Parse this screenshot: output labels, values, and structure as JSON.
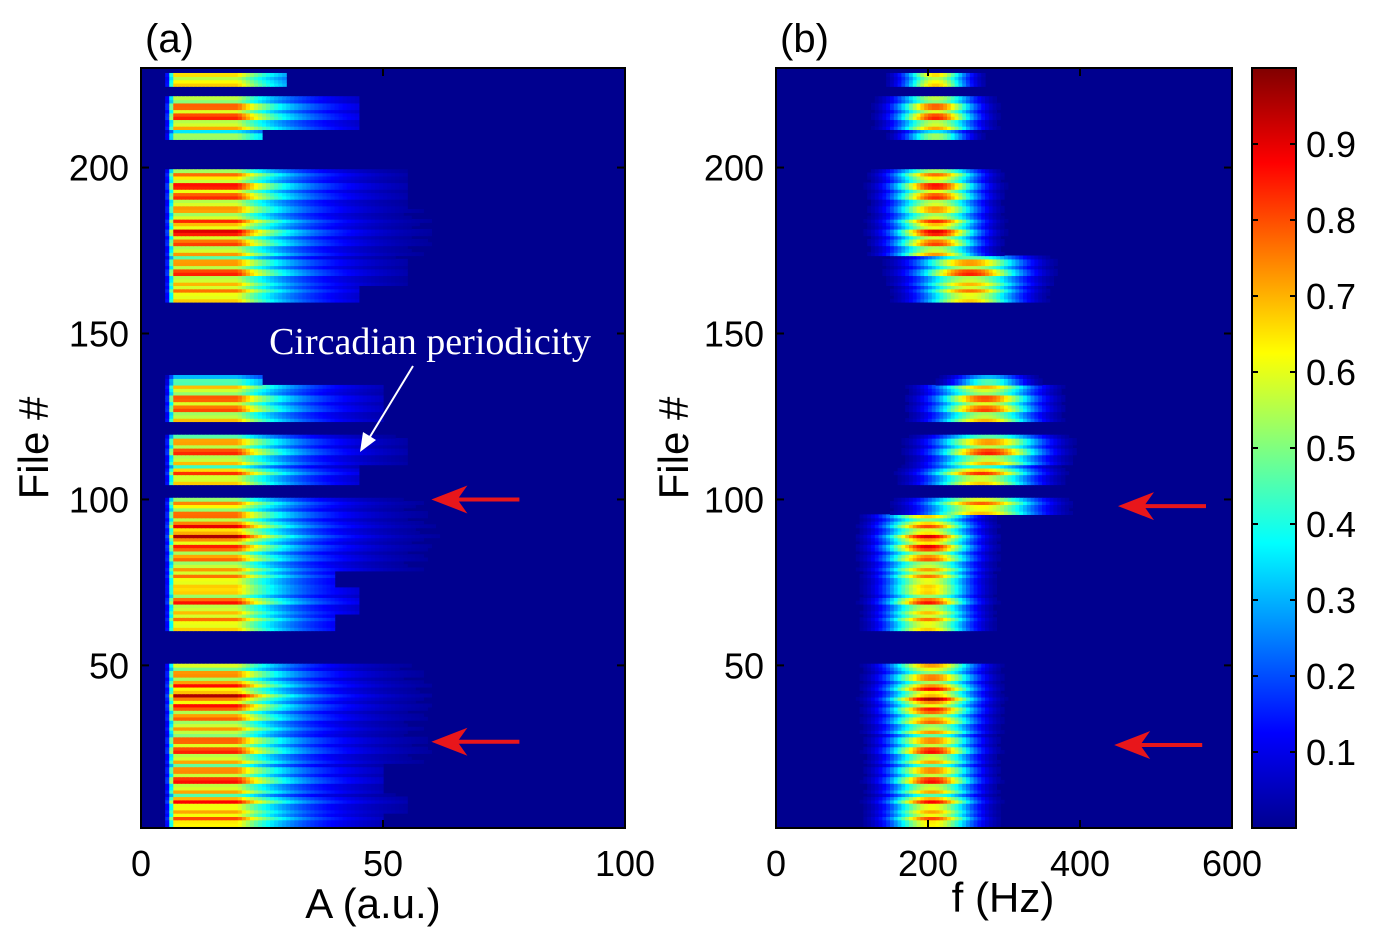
{
  "chart_data": [
    {
      "panel_label": "(a)",
      "type": "heatmap",
      "xlabel": "A (a.u.)",
      "ylabel": "File #",
      "xlim": [
        0,
        100
      ],
      "ylim": [
        1,
        230
      ],
      "xticks": [
        "0",
        "50",
        "100"
      ],
      "yticks": [
        "50",
        "100",
        "150",
        "200"
      ],
      "xtick_values": [
        0,
        50,
        100
      ],
      "ytick_values": [
        50,
        100,
        150,
        200
      ],
      "colormap": "jet",
      "background_value": 0.0,
      "profile": {
        "peak_start": 7,
        "peak_end": 20,
        "decay_width": 12,
        "tail_to": 60
      },
      "bands": [
        {
          "from": 1,
          "to": 5,
          "intensity": 0.95,
          "reach": 50
        },
        {
          "from": 6,
          "to": 11,
          "intensity": 0.95,
          "reach": 55
        },
        {
          "from": 12,
          "to": 20,
          "intensity": 0.95,
          "reach": 50
        },
        {
          "from": 21,
          "to": 30,
          "intensity": 0.95,
          "reach": 70
        },
        {
          "from": 31,
          "to": 50,
          "intensity": 0.97,
          "reach": 60
        },
        {
          "from": 61,
          "to": 65,
          "intensity": 0.9,
          "reach": 40
        },
        {
          "from": 66,
          "to": 73,
          "intensity": 0.92,
          "reach": 45
        },
        {
          "from": 74,
          "to": 78,
          "intensity": 0.9,
          "reach": 40
        },
        {
          "from": 79,
          "to": 100,
          "intensity": 0.97,
          "reach": 65
        },
        {
          "from": 105,
          "to": 110,
          "intensity": 0.9,
          "reach": 45
        },
        {
          "from": 111,
          "to": 119,
          "intensity": 0.92,
          "reach": 55
        },
        {
          "from": 124,
          "to": 134,
          "intensity": 0.92,
          "reach": 50
        },
        {
          "from": 135,
          "to": 137,
          "intensity": 0.6,
          "reach": 25
        },
        {
          "from": 160,
          "to": 164,
          "intensity": 0.9,
          "reach": 45
        },
        {
          "from": 165,
          "to": 173,
          "intensity": 0.93,
          "reach": 55
        },
        {
          "from": 174,
          "to": 187,
          "intensity": 0.97,
          "reach": 60
        },
        {
          "from": 188,
          "to": 199,
          "intensity": 0.97,
          "reach": 55
        },
        {
          "from": 209,
          "to": 211,
          "intensity": 0.7,
          "reach": 25
        },
        {
          "from": 212,
          "to": 221,
          "intensity": 0.95,
          "reach": 45
        },
        {
          "from": 225,
          "to": 228,
          "intensity": 0.9,
          "reach": 30
        }
      ],
      "annotation": {
        "text": "Circadian periodicity"
      },
      "arrows": [
        {
          "at_x": 60,
          "at_y": 100
        },
        {
          "at_x": 60,
          "at_y": 27
        }
      ]
    },
    {
      "panel_label": "(b)",
      "type": "heatmap",
      "xlabel": "f (Hz)",
      "ylabel": "File #",
      "xlim": [
        0,
        600
      ],
      "ylim": [
        1,
        230
      ],
      "xticks": [
        "0",
        "200",
        "400",
        "600"
      ],
      "yticks": [
        "50",
        "100",
        "150",
        "200"
      ],
      "xtick_values": [
        0,
        200,
        400,
        600
      ],
      "ytick_values": [
        50,
        100,
        150,
        200
      ],
      "colormap": "jet",
      "background_value": 0.0,
      "bands": [
        {
          "from": 1,
          "to": 5,
          "center": 205,
          "width": 60,
          "intensity": 0.95
        },
        {
          "from": 6,
          "to": 11,
          "center": 205,
          "width": 60,
          "intensity": 0.95
        },
        {
          "from": 12,
          "to": 20,
          "center": 205,
          "width": 60,
          "intensity": 0.95
        },
        {
          "from": 21,
          "to": 29,
          "center": 205,
          "width": 60,
          "intensity": 0.95
        },
        {
          "from": 30,
          "to": 50,
          "center": 205,
          "width": 62,
          "intensity": 0.97
        },
        {
          "from": 61,
          "to": 65,
          "center": 200,
          "width": 60,
          "intensity": 0.9
        },
        {
          "from": 66,
          "to": 73,
          "center": 200,
          "width": 60,
          "intensity": 0.92
        },
        {
          "from": 74,
          "to": 78,
          "center": 200,
          "width": 60,
          "intensity": 0.9
        },
        {
          "from": 79,
          "to": 95,
          "center": 200,
          "width": 62,
          "intensity": 0.97
        },
        {
          "from": 96,
          "to": 100,
          "center": 270,
          "width": 80,
          "intensity": 0.92
        },
        {
          "from": 105,
          "to": 110,
          "center": 270,
          "width": 75,
          "intensity": 0.9
        },
        {
          "from": 111,
          "to": 119,
          "center": 280,
          "width": 75,
          "intensity": 0.93
        },
        {
          "from": 124,
          "to": 134,
          "center": 275,
          "width": 70,
          "intensity": 0.93
        },
        {
          "from": 135,
          "to": 137,
          "center": 280,
          "width": 50,
          "intensity": 0.6
        },
        {
          "from": 160,
          "to": 164,
          "center": 255,
          "width": 70,
          "intensity": 0.9
        },
        {
          "from": 165,
          "to": 173,
          "center": 255,
          "width": 75,
          "intensity": 0.93
        },
        {
          "from": 174,
          "to": 187,
          "center": 210,
          "width": 60,
          "intensity": 0.97
        },
        {
          "from": 188,
          "to": 199,
          "center": 210,
          "width": 60,
          "intensity": 0.97
        },
        {
          "from": 209,
          "to": 211,
          "center": 210,
          "width": 45,
          "intensity": 0.7
        },
        {
          "from": 212,
          "to": 221,
          "center": 210,
          "width": 55,
          "intensity": 0.95
        },
        {
          "from": 225,
          "to": 228,
          "center": 210,
          "width": 45,
          "intensity": 0.9
        }
      ],
      "arrows": [
        {
          "at_x": 450,
          "at_y": 98
        },
        {
          "at_x": 445,
          "at_y": 26
        }
      ]
    }
  ],
  "colorbar": {
    "min": 0,
    "max": 1,
    "ticks": [
      "0.1",
      "0.2",
      "0.3",
      "0.4",
      "0.5",
      "0.6",
      "0.7",
      "0.8",
      "0.9"
    ],
    "tick_values": [
      0.1,
      0.2,
      0.3,
      0.4,
      0.5,
      0.6,
      0.7,
      0.8,
      0.9
    ]
  },
  "colors": {
    "arrow": "#e8161b",
    "annotation": "#ffffff",
    "axis": "#000000"
  }
}
